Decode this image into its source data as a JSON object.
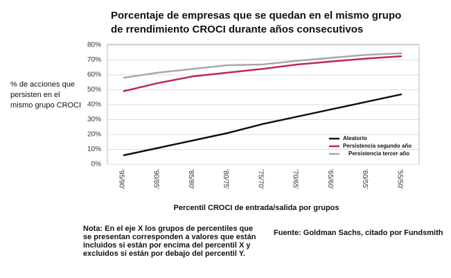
{
  "chart_data": {
    "type": "line",
    "title": [
      "Porcentaje de empresas que se quedan en el mismo grupo",
      "de rrendimiento CROCI durante años consecutivos"
    ],
    "ylabel": [
      "% de acciones que",
      "persisten en el",
      "mismo grupo CROCI"
    ],
    "xlabel": "Percentil CROCI de entrada/salida por grupos",
    "note": [
      "Nota: En el eje X los grupos de percentiles que",
      "se presentan corresponden a valores que están",
      "incluidos si están por encima del percentil X y",
      "excluidos si están por debajo del percentil Y."
    ],
    "source": "Fuente: Goldman Sachs, citado por Fundsmith",
    "categories": [
      "'95/90'",
      "'90/85'",
      "'85/80'",
      "'80/75'",
      "'75/70'",
      "'70/65'",
      "'65/60'",
      "'60/55'",
      "'55/50'"
    ],
    "series": [
      {
        "name": "Aleatorio",
        "color": "#111111",
        "values": [
          6,
          11,
          16,
          21,
          27,
          32,
          37,
          42,
          47
        ]
      },
      {
        "name": "Persistencia segundo año",
        "color": "#c0284f",
        "values": [
          49,
          54.5,
          59,
          61.5,
          64,
          67,
          69,
          71,
          72.5
        ]
      },
      {
        "name": "Persistencia tercer año",
        "color": "#a8a8a8",
        "values": [
          58,
          61.5,
          64,
          66.5,
          67,
          69.5,
          71.5,
          73.5,
          74.5
        ]
      }
    ],
    "ylim": [
      0,
      80
    ],
    "yticks": [
      {
        "value": 0,
        "label": "0%"
      },
      {
        "value": 10,
        "label": "10%"
      },
      {
        "value": 20,
        "label": "20%"
      },
      {
        "value": 30,
        "label": "30%"
      },
      {
        "value": 40,
        "label": "40%"
      },
      {
        "value": 50,
        "label": "50%"
      },
      {
        "value": 60,
        "label": "60%"
      },
      {
        "value": 70,
        "label": "70%"
      },
      {
        "value": 80,
        "label": "80%"
      }
    ],
    "grid": true,
    "legend": "lower right"
  }
}
